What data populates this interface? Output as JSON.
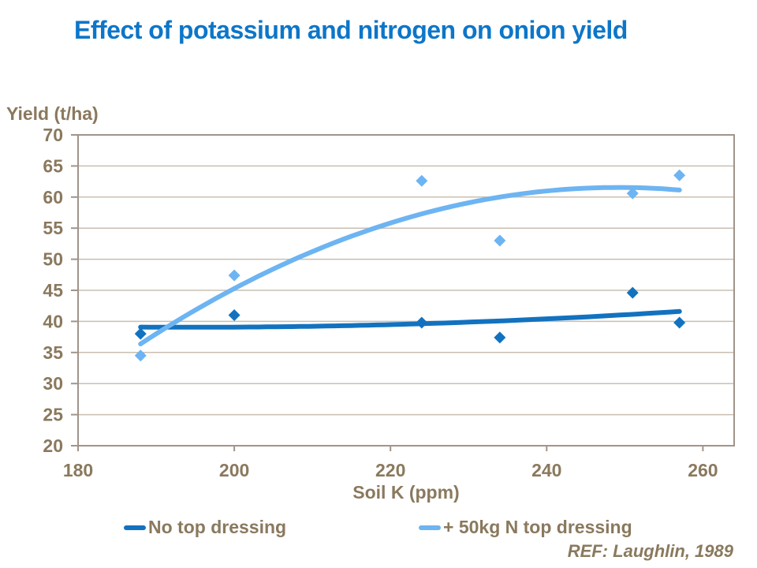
{
  "title": {
    "text": "Effect of potassium and nitrogen on onion yield",
    "color": "#0D76C8"
  },
  "annotation": {
    "text": "REF: Laughlin, 1989"
  },
  "colors": {
    "axis_text": "#8A795E",
    "axis_line": "#A1948A",
    "gridline": "#C9BFB0",
    "background": "#FFFFFF"
  },
  "chart_data": {
    "type": "scatter",
    "title": "Effect of potassium and nitrogen on onion yield",
    "xlabel": "Soil K (ppm)",
    "ylabel": "Yield (t/ha)",
    "xlim": [
      180,
      264
    ],
    "ylim": [
      20,
      70
    ],
    "x_ticks": [
      180,
      200,
      220,
      240,
      260
    ],
    "y_ticks": [
      20,
      25,
      30,
      35,
      40,
      45,
      50,
      55,
      60,
      65,
      70
    ],
    "grid": "horizontal-only",
    "legend_position": "bottom",
    "series": [
      {
        "name": "No top dressing",
        "color": "#1272BF",
        "marker": "diamond",
        "trendline": "polynomial-order-2",
        "points": [
          [
            188,
            38.0
          ],
          [
            200,
            41.0
          ],
          [
            224,
            39.8
          ],
          [
            234,
            37.4
          ],
          [
            251,
            44.6
          ],
          [
            257,
            39.8
          ]
        ]
      },
      {
        "name": "+ 50kg N top dressing",
        "color": "#6DB4F2",
        "marker": "diamond",
        "trendline": "polynomial-order-2",
        "points": [
          [
            188,
            34.5
          ],
          [
            200,
            47.4
          ],
          [
            224,
            62.6
          ],
          [
            234,
            53.0
          ],
          [
            251,
            60.6
          ],
          [
            257,
            63.5
          ]
        ]
      }
    ]
  }
}
